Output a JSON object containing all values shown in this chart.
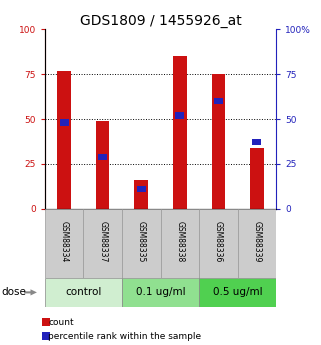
{
  "title": "GDS1809 / 1455926_at",
  "samples": [
    "GSM88334",
    "GSM88337",
    "GSM88335",
    "GSM88338",
    "GSM88336",
    "GSM88339"
  ],
  "groups": [
    {
      "label": "control",
      "indices": [
        0,
        1
      ],
      "color": "#d0eed0"
    },
    {
      "label": "0.1 ug/ml",
      "indices": [
        2,
        3
      ],
      "color": "#90e090"
    },
    {
      "label": "0.5 ug/ml",
      "indices": [
        4,
        5
      ],
      "color": "#50d050"
    }
  ],
  "count_values": [
    77,
    49,
    16,
    85,
    75,
    34
  ],
  "percentile_values": [
    48,
    29,
    11,
    52,
    60,
    37
  ],
  "bar_color_red": "#cc1111",
  "bar_color_blue": "#2222bb",
  "bar_width": 0.35,
  "ylim": [
    0,
    100
  ],
  "yticks": [
    0,
    25,
    50,
    75,
    100
  ],
  "title_fontsize": 10,
  "tick_fontsize": 6.5,
  "sample_fontsize": 5.5,
  "dose_fontsize": 7.5,
  "legend_fontsize": 6.5,
  "left_axis_color": "#cc1111",
  "right_axis_color": "#2222bb"
}
